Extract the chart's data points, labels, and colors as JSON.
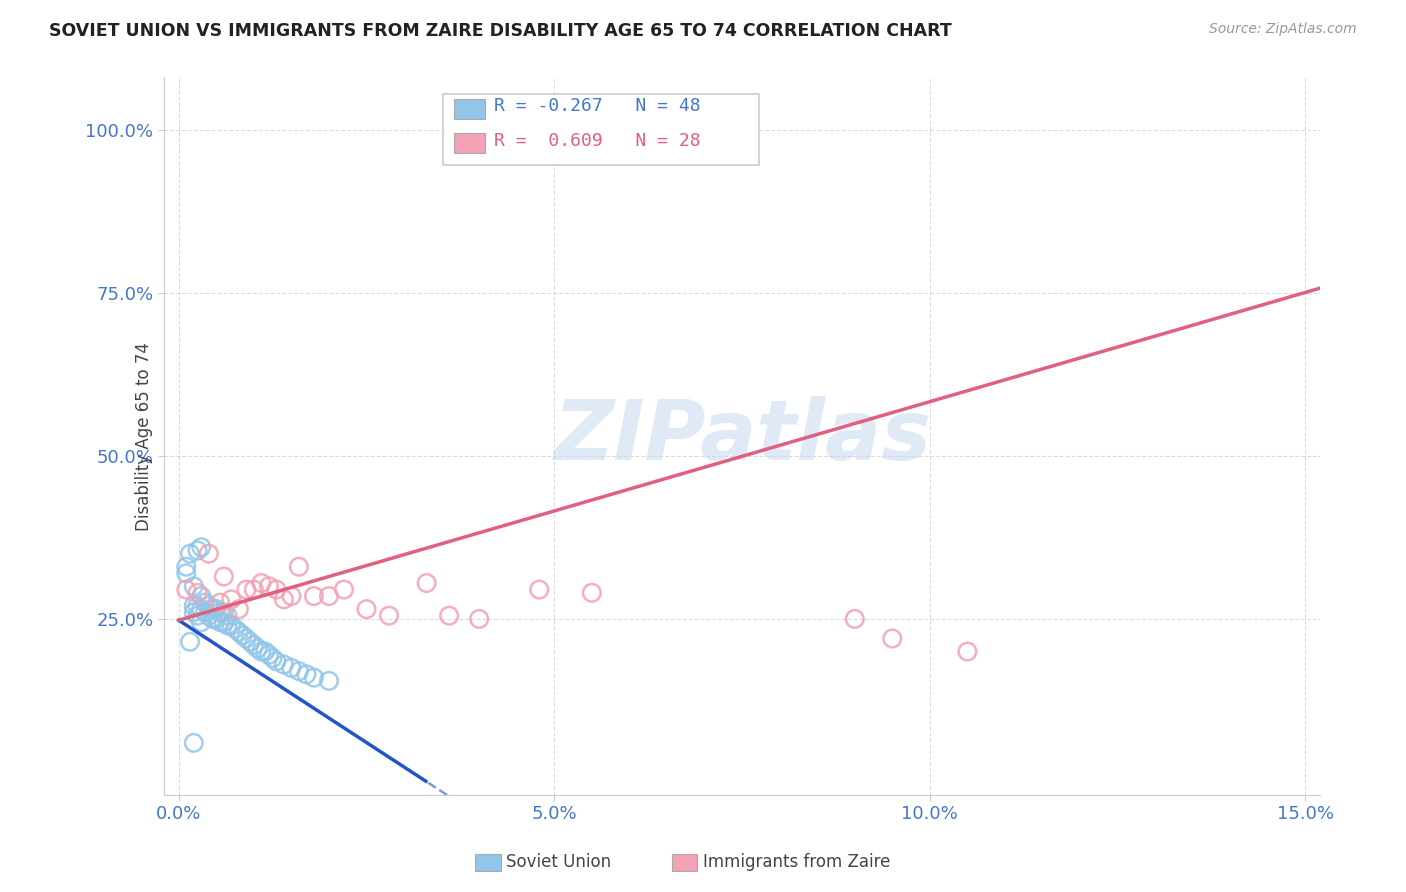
{
  "title": "SOVIET UNION VS IMMIGRANTS FROM ZAIRE DISABILITY AGE 65 TO 74 CORRELATION CHART",
  "source": "Source: ZipAtlas.com",
  "ylabel_label": "Disability Age 65 to 74",
  "xlim": [
    -0.002,
    0.152
  ],
  "ylim": [
    -0.02,
    1.08
  ],
  "xticks": [
    0.0,
    0.05,
    0.1,
    0.15
  ],
  "xtick_labels": [
    "0.0%",
    "5.0%",
    "10.0%",
    "15.0%"
  ],
  "yticks": [
    0.25,
    0.5,
    0.75,
    1.0
  ],
  "ytick_labels": [
    "25.0%",
    "50.0%",
    "75.0%",
    "100.0%"
  ],
  "soviet_R": -0.267,
  "soviet_N": 48,
  "zaire_R": 0.609,
  "zaire_N": 28,
  "soviet_color": "#92C5E8",
  "zaire_color": "#F4A0B5",
  "soviet_line_color": "#2255CC",
  "zaire_line_color": "#E06080",
  "background_color": "#FFFFFF",
  "watermark_text": "ZIPatlas",
  "soviet_x": [
    0.001,
    0.001,
    0.0015,
    0.002,
    0.002,
    0.002,
    0.0025,
    0.0025,
    0.003,
    0.003,
    0.003,
    0.0035,
    0.0035,
    0.004,
    0.004,
    0.0045,
    0.0045,
    0.005,
    0.005,
    0.0055,
    0.0055,
    0.006,
    0.006,
    0.0065,
    0.0065,
    0.007,
    0.0075,
    0.008,
    0.0085,
    0.009,
    0.0095,
    0.01,
    0.0105,
    0.011,
    0.0115,
    0.012,
    0.0125,
    0.013,
    0.014,
    0.015,
    0.016,
    0.017,
    0.018,
    0.02,
    0.0015,
    0.0025,
    0.003,
    0.002
  ],
  "soviet_y": [
    0.32,
    0.33,
    0.215,
    0.26,
    0.27,
    0.3,
    0.255,
    0.27,
    0.245,
    0.265,
    0.285,
    0.26,
    0.275,
    0.255,
    0.27,
    0.25,
    0.265,
    0.25,
    0.265,
    0.245,
    0.26,
    0.245,
    0.26,
    0.24,
    0.255,
    0.24,
    0.235,
    0.23,
    0.225,
    0.22,
    0.215,
    0.21,
    0.205,
    0.2,
    0.2,
    0.195,
    0.19,
    0.185,
    0.18,
    0.175,
    0.17,
    0.165,
    0.16,
    0.155,
    0.35,
    0.355,
    0.36,
    0.06
  ],
  "zaire_x": [
    0.001,
    0.0025,
    0.004,
    0.0055,
    0.006,
    0.007,
    0.008,
    0.009,
    0.01,
    0.011,
    0.012,
    0.013,
    0.014,
    0.015,
    0.016,
    0.018,
    0.02,
    0.022,
    0.025,
    0.028,
    0.033,
    0.036,
    0.04,
    0.048,
    0.055,
    0.09,
    0.095,
    0.105
  ],
  "zaire_y": [
    0.295,
    0.29,
    0.35,
    0.275,
    0.315,
    0.28,
    0.265,
    0.295,
    0.295,
    0.305,
    0.3,
    0.295,
    0.28,
    0.285,
    0.33,
    0.285,
    0.285,
    0.295,
    0.265,
    0.255,
    0.305,
    0.255,
    0.25,
    0.295,
    0.29,
    0.25,
    0.22,
    0.2
  ],
  "legend_R1": "R = -0.267",
  "legend_N1": "N = 48",
  "legend_R2": "R =  0.609",
  "legend_N2": "N = 28",
  "bottom_legend_soviet": "Soviet Union",
  "bottom_legend_zaire": "Immigrants from Zaire"
}
